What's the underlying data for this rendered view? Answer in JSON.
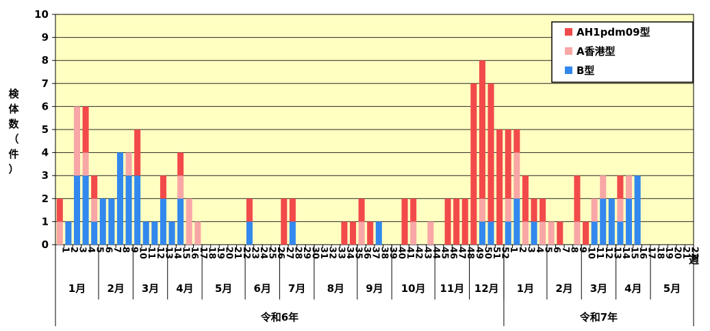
{
  "chart_data": {
    "type": "bar",
    "stacked": true,
    "ylabel": "検体数（件）",
    "ylim": [
      0,
      10
    ],
    "yticks": [
      0,
      1,
      2,
      3,
      4,
      5,
      6,
      7,
      8,
      9,
      10
    ],
    "x_axis_unit": "週",
    "grid": true,
    "legend_position": "top-right",
    "series": [
      {
        "name": "B型",
        "color": "#3388ee"
      },
      {
        "name": "A香港型",
        "color": "#f9a6a6"
      },
      {
        "name": "AH1pdm09型",
        "color": "#f24a4a"
      }
    ],
    "weeks": [
      {
        "label": "1",
        "b": 0,
        "h3": 1,
        "h1": 1
      },
      {
        "label": "2",
        "b": 1,
        "h3": 0,
        "h1": 0
      },
      {
        "label": "3",
        "b": 3,
        "h3": 3,
        "h1": 0
      },
      {
        "label": "4",
        "b": 3,
        "h3": 1,
        "h1": 2
      },
      {
        "label": "5",
        "b": 1,
        "h3": 1,
        "h1": 1
      },
      {
        "label": "6",
        "b": 2,
        "h3": 0,
        "h1": 0
      },
      {
        "label": "7",
        "b": 2,
        "h3": 0,
        "h1": 0
      },
      {
        "label": "8",
        "b": 4,
        "h3": 0,
        "h1": 0
      },
      {
        "label": "9",
        "b": 3,
        "h3": 1,
        "h1": 0
      },
      {
        "label": "10",
        "b": 3,
        "h3": 0,
        "h1": 2
      },
      {
        "label": "11",
        "b": 1,
        "h3": 0,
        "h1": 0
      },
      {
        "label": "12",
        "b": 1,
        "h3": 0,
        "h1": 0
      },
      {
        "label": "13",
        "b": 2,
        "h3": 0,
        "h1": 1
      },
      {
        "label": "14",
        "b": 1,
        "h3": 0,
        "h1": 0
      },
      {
        "label": "15",
        "b": 2,
        "h3": 1,
        "h1": 1
      },
      {
        "label": "16",
        "b": 0,
        "h3": 2,
        "h1": 0
      },
      {
        "label": "17",
        "b": 0,
        "h3": 1,
        "h1": 0
      },
      {
        "label": "18",
        "b": 0,
        "h3": 0,
        "h1": 0
      },
      {
        "label": "19",
        "b": 0,
        "h3": 0,
        "h1": 0
      },
      {
        "label": "20",
        "b": 0,
        "h3": 0,
        "h1": 0
      },
      {
        "label": "21",
        "b": 0,
        "h3": 0,
        "h1": 0
      },
      {
        "label": "22",
        "b": 0,
        "h3": 0,
        "h1": 0
      },
      {
        "label": "23",
        "b": 1,
        "h3": 0,
        "h1": 1
      },
      {
        "label": "24",
        "b": 0,
        "h3": 0,
        "h1": 0
      },
      {
        "label": "25",
        "b": 0,
        "h3": 0,
        "h1": 0
      },
      {
        "label": "26",
        "b": 0,
        "h3": 0,
        "h1": 0
      },
      {
        "label": "27",
        "b": 0,
        "h3": 0,
        "h1": 2
      },
      {
        "label": "28",
        "b": 1,
        "h3": 0,
        "h1": 1
      },
      {
        "label": "29",
        "b": 0,
        "h3": 0,
        "h1": 0
      },
      {
        "label": "30",
        "b": 0,
        "h3": 0,
        "h1": 0
      },
      {
        "label": "31",
        "b": 0,
        "h3": 0,
        "h1": 0
      },
      {
        "label": "32",
        "b": 0,
        "h3": 0,
        "h1": 0
      },
      {
        "label": "33",
        "b": 0,
        "h3": 0,
        "h1": 0
      },
      {
        "label": "34",
        "b": 0,
        "h3": 0,
        "h1": 1
      },
      {
        "label": "35",
        "b": 0,
        "h3": 0,
        "h1": 1
      },
      {
        "label": "36",
        "b": 0,
        "h3": 1,
        "h1": 1
      },
      {
        "label": "37",
        "b": 0,
        "h3": 0,
        "h1": 1
      },
      {
        "label": "38",
        "b": 1,
        "h3": 0,
        "h1": 0
      },
      {
        "label": "39",
        "b": 0,
        "h3": 0,
        "h1": 0
      },
      {
        "label": "40",
        "b": 0,
        "h3": 0,
        "h1": 0
      },
      {
        "label": "41",
        "b": 0,
        "h3": 0,
        "h1": 2
      },
      {
        "label": "42",
        "b": 0,
        "h3": 1,
        "h1": 1
      },
      {
        "label": "43",
        "b": 0,
        "h3": 0,
        "h1": 0
      },
      {
        "label": "44",
        "b": 0,
        "h3": 1,
        "h1": 0
      },
      {
        "label": "45",
        "b": 0,
        "h3": 0,
        "h1": 0
      },
      {
        "label": "46",
        "b": 0,
        "h3": 0,
        "h1": 2
      },
      {
        "label": "47",
        "b": 0,
        "h3": 0,
        "h1": 2
      },
      {
        "label": "48",
        "b": 0,
        "h3": 0,
        "h1": 2
      },
      {
        "label": "49",
        "b": 0,
        "h3": 0,
        "h1": 7
      },
      {
        "label": "50",
        "b": 1,
        "h3": 1,
        "h1": 6
      },
      {
        "label": "51",
        "b": 1,
        "h3": 0,
        "h1": 6
      },
      {
        "label": "52",
        "b": 0,
        "h3": 0,
        "h1": 5
      },
      {
        "label": "1",
        "b": 1,
        "h3": 1,
        "h1": 3
      },
      {
        "label": "2",
        "b": 2,
        "h3": 2,
        "h1": 1
      },
      {
        "label": "3",
        "b": 0,
        "h3": 1,
        "h1": 2
      },
      {
        "label": "4",
        "b": 1,
        "h3": 0,
        "h1": 1
      },
      {
        "label": "5",
        "b": 0,
        "h3": 1,
        "h1": 1
      },
      {
        "label": "6",
        "b": 0,
        "h3": 1,
        "h1": 0
      },
      {
        "label": "7",
        "b": 0,
        "h3": 0,
        "h1": 1
      },
      {
        "label": "8",
        "b": 0,
        "h3": 0,
        "h1": 0
      },
      {
        "label": "9",
        "b": 0,
        "h3": 1,
        "h1": 2
      },
      {
        "label": "10",
        "b": 0,
        "h3": 0,
        "h1": 1
      },
      {
        "label": "11",
        "b": 1,
        "h3": 1,
        "h1": 0
      },
      {
        "label": "12",
        "b": 2,
        "h3": 1,
        "h1": 0
      },
      {
        "label": "13",
        "b": 2,
        "h3": 0,
        "h1": 0
      },
      {
        "label": "14",
        "b": 1,
        "h3": 1,
        "h1": 1
      },
      {
        "label": "15",
        "b": 2,
        "h3": 1,
        "h1": 0
      },
      {
        "label": "16",
        "b": 3,
        "h3": 0,
        "h1": 0
      },
      {
        "label": "17",
        "b": 0,
        "h3": 0,
        "h1": 0
      },
      {
        "label": "18",
        "b": 0,
        "h3": 0,
        "h1": 0
      },
      {
        "label": "19",
        "b": 0,
        "h3": 0,
        "h1": 0
      },
      {
        "label": "20",
        "b": 0,
        "h3": 0,
        "h1": 0
      },
      {
        "label": "21",
        "b": 0,
        "h3": 0,
        "h1": 0
      },
      {
        "label": "22",
        "b": 0,
        "h3": 0,
        "h1": 0
      }
    ],
    "months": [
      {
        "label": "1月",
        "first": 1,
        "last": 5
      },
      {
        "label": "2月",
        "first": 6,
        "last": 9
      },
      {
        "label": "3月",
        "first": 10,
        "last": 13
      },
      {
        "label": "4月",
        "first": 14,
        "last": 17
      },
      {
        "label": "5月",
        "first": 18,
        "last": 22
      },
      {
        "label": "6月",
        "first": 23,
        "last": 26
      },
      {
        "label": "7月",
        "first": 27,
        "last": 30
      },
      {
        "label": "8月",
        "first": 31,
        "last": 35
      },
      {
        "label": "9月",
        "first": 36,
        "last": 39
      },
      {
        "label": "10月",
        "first": 40,
        "last": 44
      },
      {
        "label": "11月",
        "first": 45,
        "last": 48
      },
      {
        "label": "12月",
        "first": 49,
        "last": 52
      },
      {
        "label": "1月",
        "first": 53,
        "last": 57
      },
      {
        "label": "2月",
        "first": 58,
        "last": 61
      },
      {
        "label": "3月",
        "first": 62,
        "last": 65
      },
      {
        "label": "4月",
        "first": 66,
        "last": 69
      },
      {
        "label": "5月",
        "first": 70,
        "last": 74
      }
    ],
    "years": [
      {
        "label": "令和6年",
        "first": 1,
        "last": 52
      },
      {
        "label": "令和7年",
        "first": 53,
        "last": 74
      }
    ]
  }
}
